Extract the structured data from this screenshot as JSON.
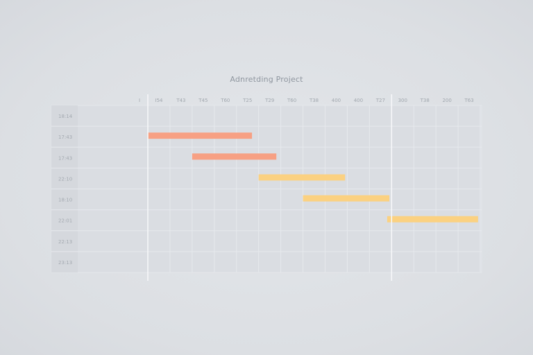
{
  "chart_data": {
    "type": "gantt",
    "title": "Adnretding Project",
    "timeline_ticks": [
      "I",
      "I54",
      "T43",
      "T45",
      "T60",
      "T25",
      "T29",
      "T60",
      "T38",
      "400",
      "400",
      "T27",
      "300",
      "T38",
      "200",
      "T63"
    ],
    "rows": [
      {
        "label": "18:14"
      },
      {
        "label": "17:43"
      },
      {
        "label": "17:43"
      },
      {
        "label": "22:10"
      },
      {
        "label": "18:10"
      },
      {
        "label": "22:01"
      },
      {
        "label": "22:13"
      },
      {
        "label": "23:13"
      }
    ],
    "tasks": [
      {
        "row": 1,
        "start": 0.0,
        "end": 4.7,
        "color": "#f7a083"
      },
      {
        "row": 2,
        "start": 2.0,
        "end": 5.8,
        "color": "#f7a083"
      },
      {
        "row": 3,
        "start": 5.0,
        "end": 8.9,
        "color": "#fbd181"
      },
      {
        "row": 4,
        "start": 7.0,
        "end": 10.9,
        "color": "#fbd181"
      },
      {
        "row": 5,
        "start": 10.8,
        "end": 14.9,
        "color": "#fbd181"
      }
    ],
    "x_range": [
      0,
      15
    ],
    "markers": [
      0,
      11
    ],
    "grid": true
  }
}
